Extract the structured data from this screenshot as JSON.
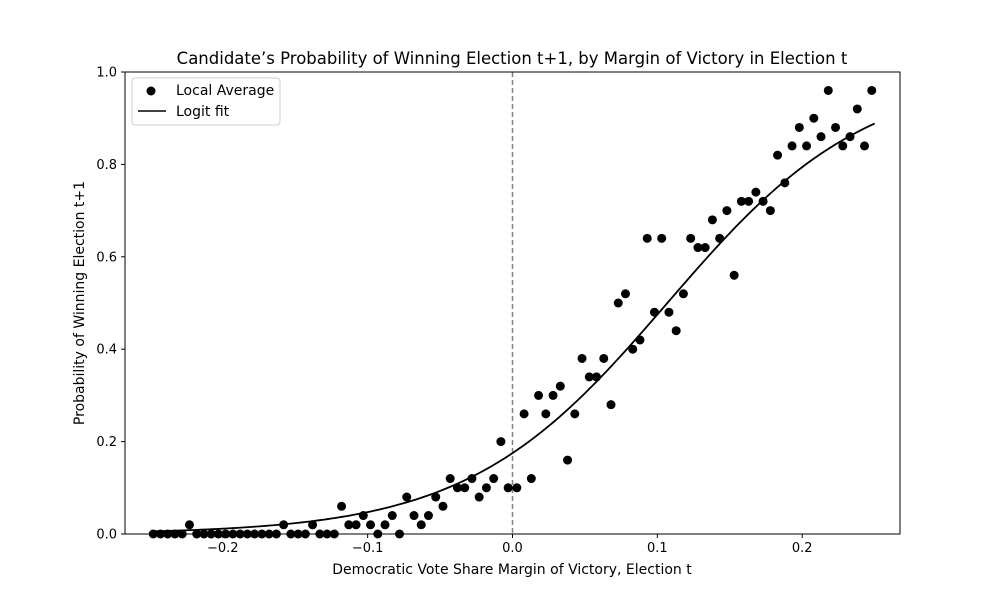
{
  "chart_data": {
    "type": "scatter",
    "title": "Candidate’s Probability of Winning Election t+1, by Margin of Victory in Election t",
    "xlabel": "Democratic Vote Share Margin of Victory, Election t",
    "ylabel": "Probability of Winning Election t+1",
    "xlim": [
      -0.2675,
      0.2675
    ],
    "ylim": [
      0.0,
      1.0
    ],
    "x_ticks": [
      -0.2,
      -0.1,
      0.0,
      0.1,
      0.2
    ],
    "x_tick_labels": [
      "−0.2",
      "−0.1",
      "0.0",
      "0.1",
      "0.2"
    ],
    "y_ticks": [
      0.0,
      0.2,
      0.4,
      0.6,
      0.8,
      1.0
    ],
    "y_tick_labels": [
      "0.0",
      "0.2",
      "0.4",
      "0.6",
      "0.8",
      "1.0"
    ],
    "grid": false,
    "legend_position": "upper-left",
    "reference_line": {
      "x": 0.0,
      "style": "dashed",
      "color": "#808080"
    },
    "series": [
      {
        "name": "Local Average",
        "kind": "scatter",
        "color": "#000000",
        "x": [
          -0.248,
          -0.243,
          -0.238,
          -0.233,
          -0.228,
          -0.223,
          -0.218,
          -0.213,
          -0.208,
          -0.203,
          -0.198,
          -0.193,
          -0.188,
          -0.183,
          -0.178,
          -0.173,
          -0.168,
          -0.163,
          -0.158,
          -0.153,
          -0.148,
          -0.143,
          -0.138,
          -0.133,
          -0.128,
          -0.123,
          -0.118,
          -0.113,
          -0.108,
          -0.103,
          -0.098,
          -0.093,
          -0.088,
          -0.083,
          -0.078,
          -0.073,
          -0.068,
          -0.063,
          -0.058,
          -0.053,
          -0.048,
          -0.043,
          -0.038,
          -0.033,
          -0.028,
          -0.023,
          -0.018,
          -0.013,
          -0.008,
          -0.003,
          0.003,
          0.008,
          0.013,
          0.018,
          0.023,
          0.028,
          0.033,
          0.038,
          0.043,
          0.048,
          0.053,
          0.058,
          0.063,
          0.068,
          0.073,
          0.078,
          0.083,
          0.088,
          0.093,
          0.098,
          0.103,
          0.108,
          0.113,
          0.118,
          0.123,
          0.128,
          0.133,
          0.138,
          0.143,
          0.148,
          0.153,
          0.158,
          0.163,
          0.168,
          0.173,
          0.178,
          0.183,
          0.188,
          0.193,
          0.198,
          0.203,
          0.208,
          0.213,
          0.218,
          0.223,
          0.228,
          0.233,
          0.238,
          0.243,
          0.248
        ],
        "y": [
          0.0,
          0.0,
          0.0,
          0.0,
          0.0,
          0.02,
          0.0,
          0.0,
          0.0,
          0.0,
          0.0,
          0.0,
          0.0,
          0.0,
          0.0,
          0.0,
          0.0,
          0.0,
          0.02,
          0.0,
          0.0,
          0.0,
          0.02,
          0.0,
          0.0,
          0.0,
          0.06,
          0.02,
          0.02,
          0.04,
          0.02,
          0.0,
          0.02,
          0.04,
          0.0,
          0.08,
          0.04,
          0.02,
          0.04,
          0.08,
          0.06,
          0.12,
          0.1,
          0.1,
          0.12,
          0.08,
          0.1,
          0.12,
          0.2,
          0.1,
          0.1,
          0.26,
          0.12,
          0.3,
          0.26,
          0.3,
          0.32,
          0.16,
          0.26,
          0.38,
          0.34,
          0.34,
          0.38,
          0.28,
          0.5,
          0.52,
          0.4,
          0.42,
          0.64,
          0.48,
          0.64,
          0.48,
          0.44,
          0.52,
          0.64,
          0.62,
          0.62,
          0.68,
          0.64,
          0.7,
          0.56,
          0.72,
          0.72,
          0.74,
          0.72,
          0.7,
          0.82,
          0.76,
          0.84,
          0.88,
          0.84,
          0.9,
          0.86,
          0.96,
          0.88,
          0.84,
          0.86,
          0.92,
          0.84,
          0.96
        ]
      },
      {
        "name": "Logit fit",
        "kind": "line",
        "color": "#000000",
        "logit_intercept": -1.55,
        "logit_slope": 14.5,
        "x_range": [
          -0.25,
          0.25
        ]
      }
    ]
  }
}
